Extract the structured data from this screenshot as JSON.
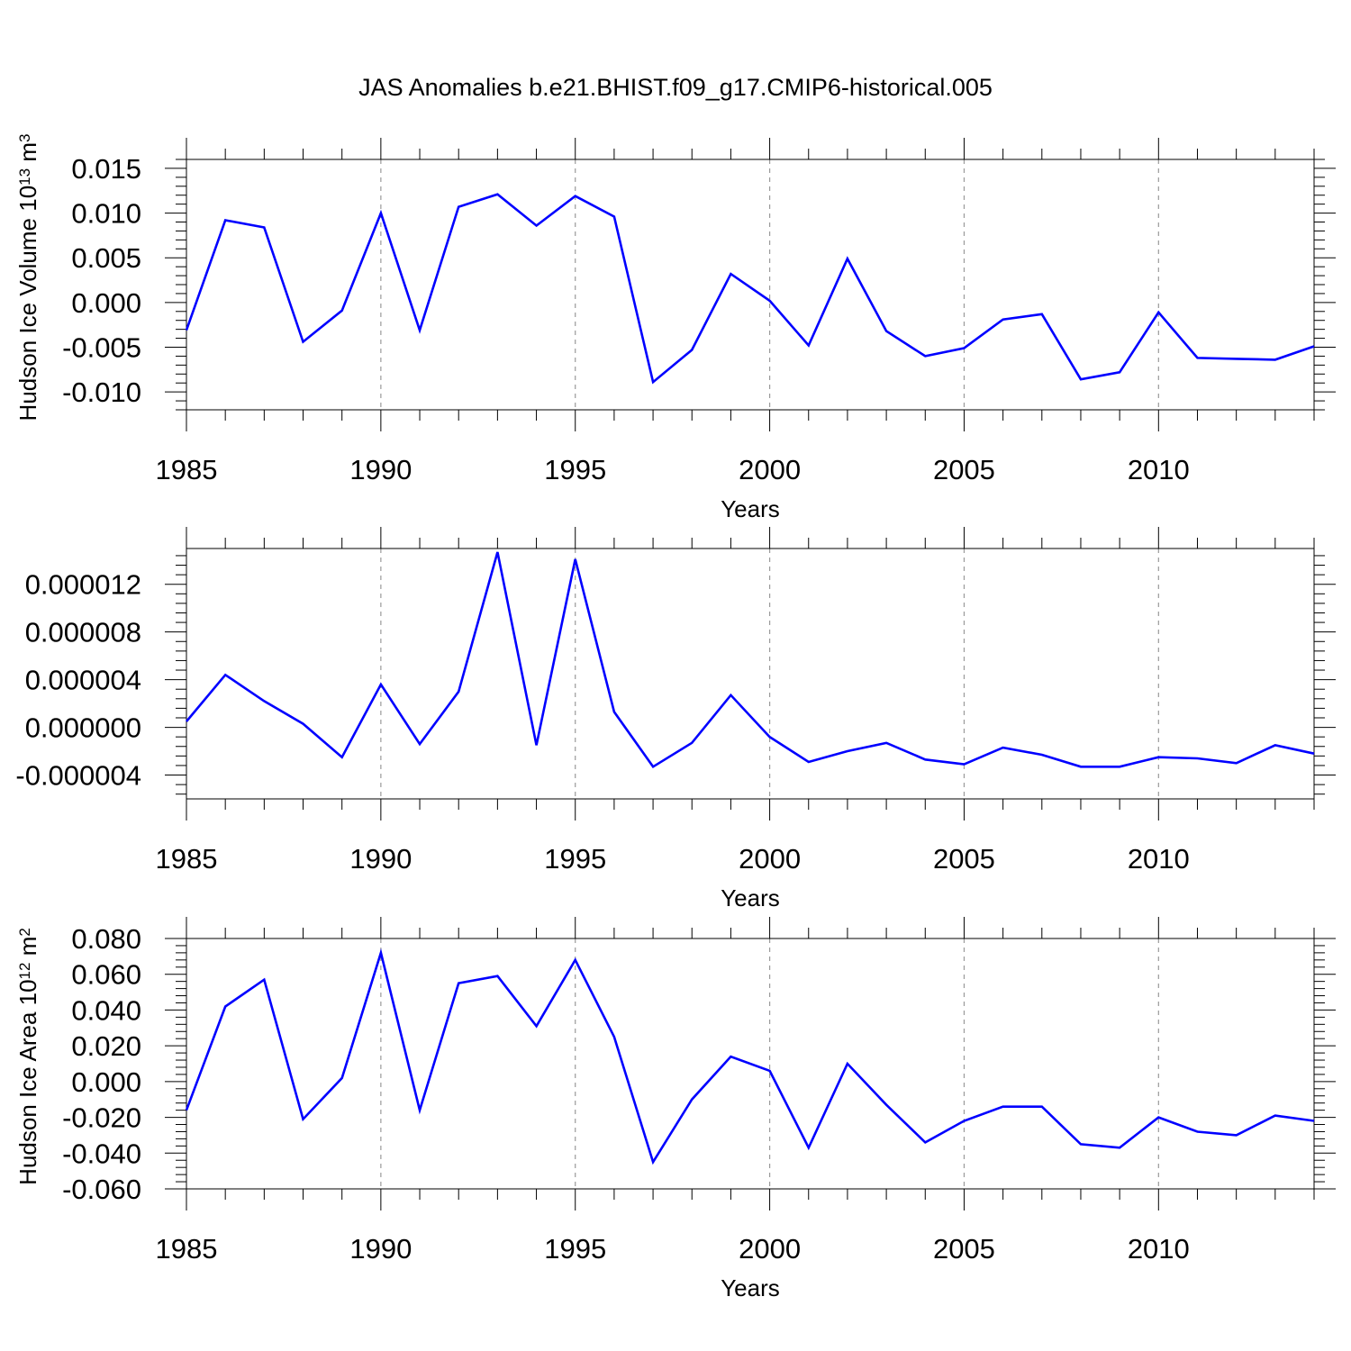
{
  "title": "JAS Anomalies b.e21.BHIST.f09_g17.CMIP6-historical.005",
  "line_color": "#0000ff",
  "chart_data": [
    {
      "type": "line",
      "name": "volume",
      "ylabel": "Hudson Ice Volume 10",
      "ylabel_exp": "13",
      "ylabel_unit": " m",
      "ylabel_unit_exp": "3",
      "xlabel": "Years",
      "xlim": [
        1985,
        2014
      ],
      "ylim": [
        -0.012,
        0.016
      ],
      "x_ticks": [
        "1985",
        "1990",
        "1995",
        "2000",
        "2005",
        "2010"
      ],
      "y_ticks": [
        "0.015",
        "0.010",
        "0.005",
        "0.000",
        "-0.005",
        "-0.010"
      ],
      "x": [
        1985,
        1986,
        1987,
        1988,
        1989,
        1990,
        1991,
        1992,
        1993,
        1994,
        1995,
        1996,
        1997,
        1998,
        1999,
        2000,
        2001,
        2002,
        2003,
        2004,
        2005,
        2006,
        2007,
        2008,
        2009,
        2010,
        2011,
        2012,
        2013,
        2014
      ],
      "series": [
        {
          "name": "Hudson Ice Volume",
          "values": [
            -0.0031,
            0.0092,
            0.0084,
            -0.0044,
            -0.0009,
            0.01,
            -0.0031,
            0.0107,
            0.0121,
            0.0086,
            0.0119,
            0.0096,
            -0.0089,
            -0.0053,
            0.0032,
            0.0002,
            -0.0048,
            0.0049,
            -0.0032,
            -0.006,
            -0.0051,
            -0.0019,
            -0.0013,
            -0.0086,
            -0.0078,
            -0.0011,
            -0.0062,
            -0.0063,
            -0.0064,
            -0.0049
          ]
        }
      ]
    },
    {
      "type": "line",
      "name": "thickness",
      "ylabel": "",
      "xlabel": "Years",
      "xlim": [
        1985,
        2014
      ],
      "ylim": [
        -6e-06,
        1.5e-05
      ],
      "x_ticks": [
        "1985",
        "1990",
        "1995",
        "2000",
        "2005",
        "2010"
      ],
      "y_ticks": [
        "0.000012",
        "0.000008",
        "0.000004",
        "0.000000",
        "-0.000004"
      ],
      "x": [
        1985,
        1986,
        1987,
        1988,
        1989,
        1990,
        1991,
        1992,
        1993,
        1994,
        1995,
        1996,
        1997,
        1998,
        1999,
        2000,
        2001,
        2002,
        2003,
        2004,
        2005,
        2006,
        2007,
        2008,
        2009,
        2010,
        2011,
        2012,
        2013,
        2014
      ],
      "series": [
        {
          "name": "Hudson",
          "values": [
            5e-07,
            4.4e-06,
            2.2e-06,
            3e-07,
            -2.5e-06,
            3.6e-06,
            -1.4e-06,
            3e-06,
            1.47e-05,
            -1.5e-06,
            1.41e-05,
            1.3e-06,
            -3.3e-06,
            -1.3e-06,
            2.7e-06,
            -8e-07,
            -2.9e-06,
            -2e-06,
            -1.3e-06,
            -2.7e-06,
            -3.1e-06,
            -1.7e-06,
            -2.3e-06,
            -3.3e-06,
            -3.3e-06,
            -2.5e-06,
            -2.6e-06,
            -3e-06,
            -1.5e-06,
            -2.2e-06
          ]
        }
      ]
    },
    {
      "type": "line",
      "name": "area",
      "ylabel": "Hudson Ice Area 10",
      "ylabel_exp": "12",
      "ylabel_unit": " m",
      "ylabel_unit_exp": "2",
      "xlabel": "Years",
      "xlim": [
        1985,
        2014
      ],
      "ylim": [
        -0.06,
        0.08
      ],
      "x_ticks": [
        "1985",
        "1990",
        "1995",
        "2000",
        "2005",
        "2010"
      ],
      "y_ticks": [
        "0.080",
        "0.060",
        "0.040",
        "0.020",
        "0.000",
        "-0.020",
        "-0.040",
        "-0.060"
      ],
      "x": [
        1985,
        1986,
        1987,
        1988,
        1989,
        1990,
        1991,
        1992,
        1993,
        1994,
        1995,
        1996,
        1997,
        1998,
        1999,
        2000,
        2001,
        2002,
        2003,
        2004,
        2005,
        2006,
        2007,
        2008,
        2009,
        2010,
        2011,
        2012,
        2013,
        2014
      ],
      "series": [
        {
          "name": "Hudson Ice Area",
          "values": [
            -0.016,
            0.042,
            0.057,
            -0.021,
            0.002,
            0.072,
            -0.016,
            0.055,
            0.059,
            0.031,
            0.068,
            0.025,
            -0.045,
            -0.01,
            0.014,
            0.006,
            -0.037,
            0.01,
            -0.013,
            -0.034,
            -0.022,
            -0.014,
            -0.014,
            -0.035,
            -0.037,
            -0.02,
            -0.028,
            -0.03,
            -0.019,
            -0.022
          ]
        }
      ]
    }
  ]
}
